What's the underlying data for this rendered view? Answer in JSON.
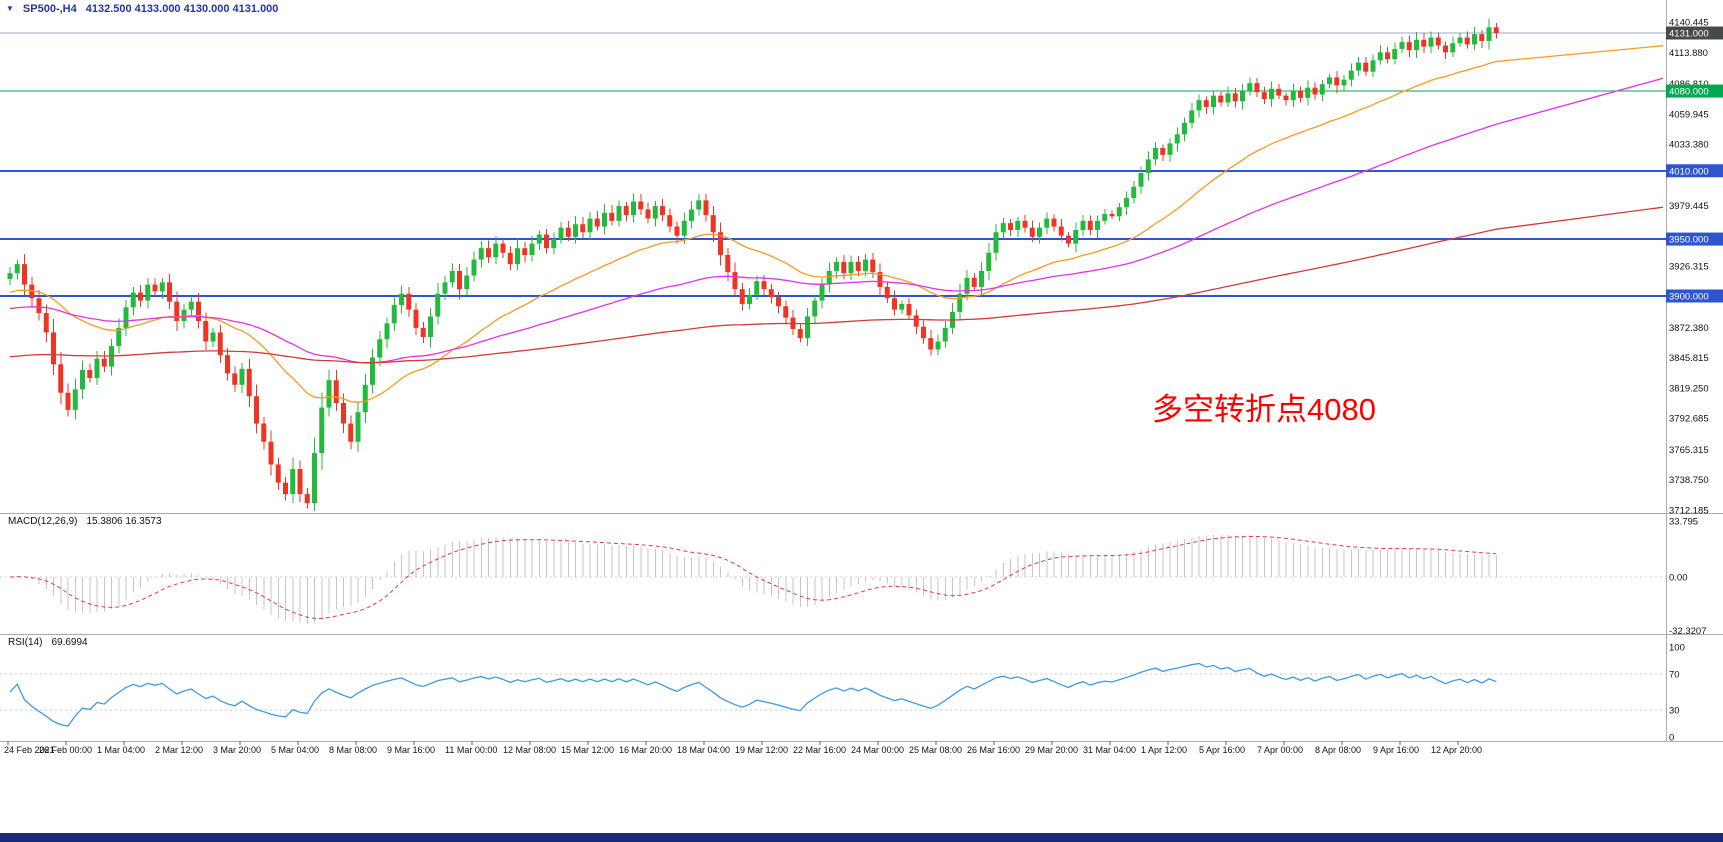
{
  "header": {
    "symbol_label": "SP500-,H4",
    "ohlc": "4132.500 4133.000 4130.000 4131.000"
  },
  "annotation": {
    "text": "多空转折点4080",
    "color": "#ff0000"
  },
  "panes": {
    "macd": {
      "label": "MACD(12,26,9)",
      "values": "15.3806 16.3573",
      "axis_labels": [
        {
          "text": "33.795",
          "value": 33.795
        },
        {
          "text": "0.00",
          "value": 0
        },
        {
          "text": "-32.3207",
          "value": -32.3207
        }
      ]
    },
    "rsi": {
      "label": "RSI(14)",
      "value": "69.6994",
      "axis_labels": [
        {
          "text": "100",
          "value": 100
        },
        {
          "text": "70",
          "value": 70
        },
        {
          "text": "30",
          "value": 30
        },
        {
          "text": "0",
          "value": 0
        }
      ],
      "guide_levels": [
        70,
        30
      ]
    }
  },
  "chart_data": {
    "type": "candlestick",
    "title": "SP500-,H4",
    "symbol": "SP500-",
    "timeframe": "H4",
    "last_quote": {
      "open": 4132.5,
      "high": 4133.0,
      "low": 4130.0,
      "close": 4131.0
    },
    "ylim": [
      3711,
      4148
    ],
    "price_axis_labels": [
      {
        "text": "4140.445",
        "price": 4140.445
      },
      {
        "text": "4113.880",
        "price": 4113.88
      },
      {
        "text": "4086.810",
        "price": 4086.81
      },
      {
        "text": "4059.945",
        "price": 4059.945
      },
      {
        "text": "4033.380",
        "price": 4033.38
      },
      {
        "text": "3979.445",
        "price": 3979.445
      },
      {
        "text": "3926.315",
        "price": 3926.315
      },
      {
        "text": "3872.380",
        "price": 3872.38
      },
      {
        "text": "3845.815",
        "price": 3845.815
      },
      {
        "text": "3819.250",
        "price": 3819.25
      },
      {
        "text": "3792.685",
        "price": 3792.685
      },
      {
        "text": "3765.315",
        "price": 3765.315
      },
      {
        "text": "3738.750",
        "price": 3738.75
      },
      {
        "text": "3712.185",
        "price": 3712.185
      }
    ],
    "price_badges": [
      {
        "text": "4131.000",
        "price": 4131,
        "color": "#46494e"
      },
      {
        "text": "4080.000",
        "price": 4080,
        "color": "#00a94f"
      },
      {
        "text": "4010.000",
        "price": 4010,
        "color": "#2e54d0"
      },
      {
        "text": "3950.000",
        "price": 3950,
        "color": "#2e54d0"
      },
      {
        "text": "3900.000",
        "price": 3900,
        "color": "#2e54d0"
      }
    ],
    "horizontal_lines": [
      {
        "price": 4131,
        "color": "#9aa7cc",
        "width": 1
      },
      {
        "price": 4080,
        "color": "#00a94f",
        "width": 1
      },
      {
        "price": 4010,
        "color": "#2e54d0",
        "width": 2
      },
      {
        "price": 3950,
        "color": "#2e54d0",
        "width": 2
      },
      {
        "price": 3900,
        "color": "#2e54d0",
        "width": 2
      }
    ],
    "time_axis_labels": [
      "24 Feb 2021",
      "26 Feb 00:00",
      "1 Mar 04:00",
      "2 Mar 12:00",
      "3 Mar 20:00",
      "5 Mar 04:00",
      "8 Mar 08:00",
      "9 Mar 16:00",
      "11 Mar 00:00",
      "12 Mar 08:00",
      "15 Mar 12:00",
      "16 Mar 20:00",
      "18 Mar 04:00",
      "19 Mar 12:00",
      "22 Mar 16:00",
      "24 Mar 00:00",
      "25 Mar 08:00",
      "26 Mar 16:00",
      "29 Mar 20:00",
      "31 Mar 04:00",
      "1 Apr 12:00",
      "5 Apr 16:00",
      "7 Apr 00:00",
      "8 Apr 08:00",
      "9 Apr 16:00",
      "12 Apr 20:00"
    ],
    "first_open": 3915,
    "closes": [
      3920,
      3928,
      3910,
      3898,
      3885,
      3868,
      3840,
      3815,
      3800,
      3818,
      3835,
      3828,
      3845,
      3838,
      3856,
      3872,
      3890,
      3903,
      3896,
      3910,
      3904,
      3912,
      3895,
      3878,
      3888,
      3895,
      3878,
      3860,
      3868,
      3848,
      3832,
      3822,
      3836,
      3812,
      3788,
      3772,
      3752,
      3736,
      3726,
      3748,
      3726,
      3718,
      3762,
      3802,
      3826,
      3806,
      3788,
      3772,
      3798,
      3822,
      3846,
      3862,
      3876,
      3892,
      3902,
      3888,
      3872,
      3864,
      3882,
      3902,
      3912,
      3922,
      3906,
      3918,
      3932,
      3942,
      3934,
      3946,
      3938,
      3928,
      3942,
      3936,
      3946,
      3954,
      3942,
      3950,
      3960,
      3952,
      3963,
      3956,
      3968,
      3961,
      3973,
      3966,
      3979,
      3971,
      3983,
      3976,
      3968,
      3979,
      3971,
      3961,
      3953,
      3966,
      3976,
      3984,
      3971,
      3956,
      3936,
      3921,
      3906,
      3893,
      3901,
      3913,
      3906,
      3899,
      3891,
      3881,
      3871,
      3863,
      3882,
      3896,
      3910,
      3922,
      3930,
      3920,
      3930,
      3922,
      3932,
      3921,
      3908,
      3898,
      3888,
      3893,
      3883,
      3873,
      3863,
      3853,
      3860,
      3872,
      3886,
      3902,
      3916,
      3908,
      3922,
      3938,
      3956,
      3964,
      3958,
      3966,
      3960,
      3952,
      3960,
      3968,
      3961,
      3953,
      3946,
      3958,
      3966,
      3958,
      3966,
      3972,
      3970,
      3978,
      3986,
      3996,
      4008,
      4020,
      4030,
      4024,
      4034,
      4042,
      4052,
      4063,
      4072,
      4066,
      4076,
      4070,
      4078,
      4071,
      4080,
      4087,
      4079,
      4073,
      4082,
      4076,
      4072,
      4080,
      4074,
      4083,
      4077,
      4086,
      4092,
      4085,
      4090,
      4098,
      4105,
      4097,
      4107,
      4114,
      4108,
      4117,
      4123,
      4116,
      4125,
      4119,
      4127,
      4120,
      4114,
      4122,
      4127,
      4121,
      4130,
      4124,
      4136,
      4131
    ],
    "indicators": {
      "macd": {
        "fast": 12,
        "slow": 26,
        "signal": 9
      },
      "rsi": {
        "period": 14
      }
    },
    "colors": {
      "up": "#23b93d",
      "down": "#ee3524",
      "ma_fast": "#f59b22",
      "ma_mid": "#e632e6",
      "ma_slow": "#d23b3b",
      "macd_hist": "#c6c6c6",
      "macd_signal": "#e23b3b",
      "rsi": "#3d9be9"
    }
  }
}
